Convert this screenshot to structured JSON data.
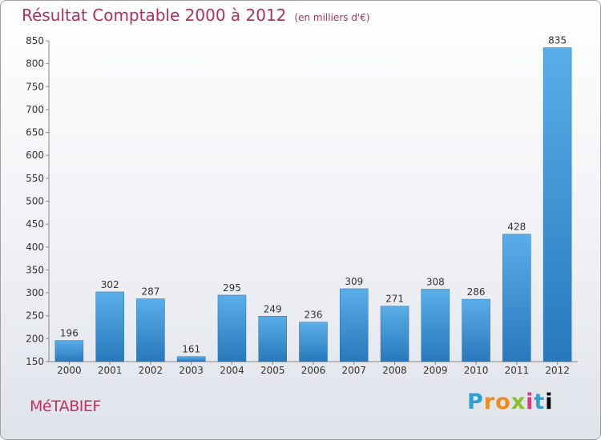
{
  "header": {
    "title": "Résultat Comptable 2000 à 2012",
    "subtitle": "(en milliers d'€)"
  },
  "commune": "MéTABIEF",
  "logo": [
    "P",
    "r",
    "o",
    "x",
    "i",
    "t",
    "i"
  ],
  "colors": {
    "bar_light": "#5aaee8",
    "bar_dark": "#2a7fc0",
    "title": "#b0305a"
  },
  "chart_data": {
    "type": "bar",
    "categories": [
      "2000",
      "2001",
      "2002",
      "2003",
      "2004",
      "2005",
      "2006",
      "2007",
      "2008",
      "2009",
      "2010",
      "2011",
      "2012"
    ],
    "values": [
      196,
      302,
      287,
      161,
      295,
      249,
      236,
      309,
      271,
      308,
      286,
      428,
      835
    ],
    "ylim": [
      150,
      850
    ],
    "yticks": [
      150,
      200,
      250,
      300,
      350,
      400,
      450,
      500,
      550,
      600,
      650,
      700,
      750,
      800,
      850
    ],
    "grid": false,
    "legend": "none"
  }
}
